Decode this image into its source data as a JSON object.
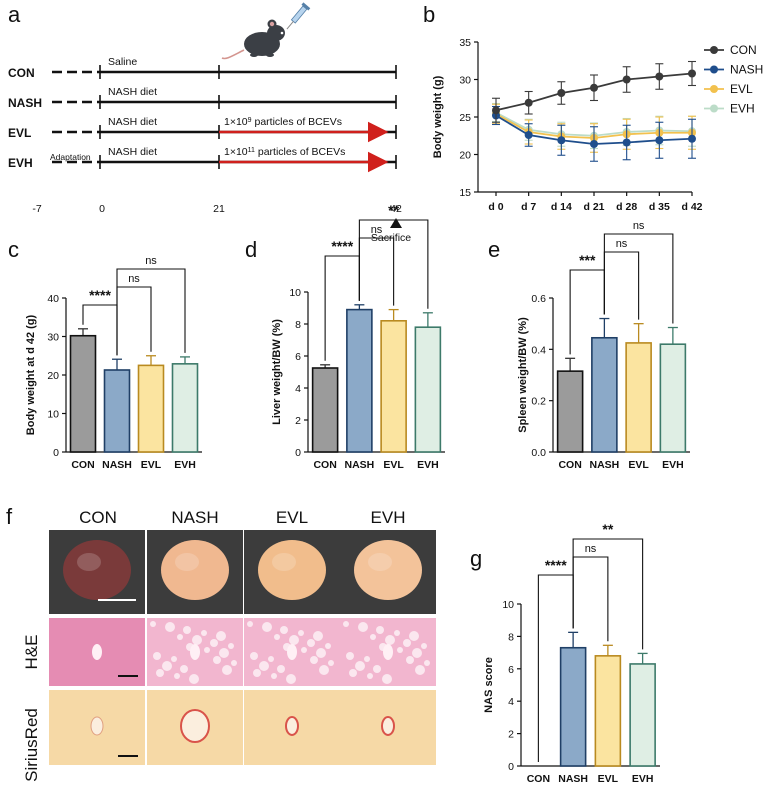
{
  "panels": {
    "a": "a",
    "b": "b",
    "c": "c",
    "d": "d",
    "e": "e",
    "f": "f",
    "g": "g"
  },
  "schematic": {
    "groups": [
      "CON",
      "NASH",
      "EVL",
      "EVH"
    ],
    "treatments": [
      "Saline",
      "NASH diet",
      "NASH diet",
      "NASH diet"
    ],
    "adaptation": "Adaptation",
    "evl_note_pre": "1×10",
    "evl_note_exp": "9",
    "evl_note_post": " particles of BCEVs",
    "evh_note_pre": "1×10",
    "evh_note_exp": "11",
    "evh_note_post": " particles of BCEVs",
    "timepoints": [
      "-7",
      "0",
      "21",
      "42"
    ],
    "sacrifice": "Sacrifice"
  },
  "chart_data": [
    {
      "id": "b",
      "type": "line",
      "title": "",
      "xlabel": "",
      "ylabel": "Body weight (g)",
      "categories": [
        "d 0",
        "d 7",
        "d 14",
        "d 21",
        "d 28",
        "d 35",
        "d 42"
      ],
      "ylim": [
        15,
        35
      ],
      "yticks": [
        "15",
        "20",
        "25",
        "30",
        "35"
      ],
      "series": [
        {
          "name": "CON",
          "color": "#3a3a3a",
          "values": [
            25.9,
            26.9,
            28.2,
            28.9,
            30.0,
            30.4,
            30.8
          ],
          "errors": [
            1.6,
            1.5,
            1.5,
            1.7,
            1.7,
            1.7,
            1.6
          ]
        },
        {
          "name": "NASH",
          "color": "#1f4e8c",
          "values": [
            25.2,
            22.6,
            21.9,
            21.4,
            21.6,
            21.9,
            22.1
          ],
          "errors": [
            1.2,
            1.5,
            2.0,
            2.3,
            2.3,
            2.4,
            2.6
          ]
        },
        {
          "name": "EVL",
          "color": "#f2c14e",
          "values": [
            25.4,
            23.0,
            22.4,
            22.2,
            22.7,
            22.9,
            22.9
          ],
          "errors": [
            1.3,
            1.6,
            1.7,
            1.9,
            2.0,
            2.1,
            2.2
          ]
        },
        {
          "name": "EVH",
          "color": "#bcdcc8",
          "values": [
            25.6,
            23.3,
            22.7,
            22.5,
            23.0,
            23.2,
            23.1
          ],
          "errors": [
            1.2,
            1.4,
            1.6,
            1.7,
            1.8,
            1.9,
            2.0
          ]
        }
      ]
    },
    {
      "id": "c",
      "type": "bar",
      "ylabel": "Body weight at d 42 (g)",
      "categories": [
        "CON",
        "NASH",
        "EVL",
        "EVH"
      ],
      "values": [
        30.2,
        21.3,
        22.5,
        22.9
      ],
      "errors": [
        1.8,
        2.8,
        2.5,
        1.8
      ],
      "ylim": [
        0,
        40
      ],
      "yticks": [
        "0",
        "10",
        "20",
        "30",
        "40"
      ],
      "significance": [
        {
          "from": 1,
          "to": 0,
          "label": "****",
          "level": 1
        },
        {
          "from": 1,
          "to": 2,
          "label": "ns",
          "level": 2
        },
        {
          "from": 1,
          "to": 3,
          "label": "ns",
          "level": 3
        }
      ]
    },
    {
      "id": "d",
      "type": "bar",
      "ylabel": "Liver weight/BW (%)",
      "categories": [
        "CON",
        "NASH",
        "EVL",
        "EVH"
      ],
      "values": [
        5.25,
        8.9,
        8.2,
        7.8
      ],
      "errors": [
        0.2,
        0.3,
        0.7,
        0.9
      ],
      "ylim": [
        0,
        10
      ],
      "yticks": [
        "0",
        "2",
        "4",
        "6",
        "8",
        "10"
      ],
      "significance": [
        {
          "from": 1,
          "to": 0,
          "label": "****",
          "level": 1
        },
        {
          "from": 1,
          "to": 2,
          "label": "ns",
          "level": 2
        },
        {
          "from": 1,
          "to": 3,
          "label": "**",
          "level": 3
        }
      ]
    },
    {
      "id": "e",
      "type": "bar",
      "ylabel": "Spleen weight/BW (%)",
      "categories": [
        "CON",
        "NASH",
        "EVL",
        "EVH"
      ],
      "values": [
        0.315,
        0.445,
        0.425,
        0.42
      ],
      "errors": [
        0.05,
        0.075,
        0.075,
        0.065
      ],
      "ylim": [
        0,
        0.6
      ],
      "yticks": [
        "0.0",
        "0.2",
        "0.4",
        "0.6"
      ],
      "significance": [
        {
          "from": 1,
          "to": 0,
          "label": "***",
          "level": 1
        },
        {
          "from": 1,
          "to": 2,
          "label": "ns",
          "level": 2
        },
        {
          "from": 1,
          "to": 3,
          "label": "ns",
          "level": 3
        }
      ]
    },
    {
      "id": "g",
      "type": "bar",
      "ylabel": "NAS score",
      "categories": [
        "CON",
        "NASH",
        "EVL",
        "EVH"
      ],
      "values": [
        0,
        7.3,
        6.8,
        6.3
      ],
      "errors": [
        0,
        0.95,
        0.65,
        0.65
      ],
      "ylim": [
        0,
        10
      ],
      "yticks": [
        "0",
        "2",
        "4",
        "6",
        "8",
        "10"
      ],
      "significance": [
        {
          "from": 1,
          "to": 0,
          "label": "****",
          "level": 1
        },
        {
          "from": 1,
          "to": 2,
          "label": "ns",
          "level": 2
        },
        {
          "from": 1,
          "to": 3,
          "label": "**",
          "level": 3
        }
      ]
    }
  ],
  "bar_colors": {
    "fills": [
      "#9b9b9b",
      "#8ba9c8",
      "#fbe4a0",
      "#dfeee4"
    ],
    "strokes": [
      "#111111",
      "#1f3f66",
      "#b98a20",
      "#3d7a6a"
    ],
    "errors": [
      "#333333",
      "#1f3f66",
      "#b98a20",
      "#3d7a6a"
    ]
  },
  "histology": {
    "columns": [
      "CON",
      "NASH",
      "EVL",
      "EVH"
    ],
    "rows": [
      "H&E",
      "SiriusRed"
    ]
  }
}
